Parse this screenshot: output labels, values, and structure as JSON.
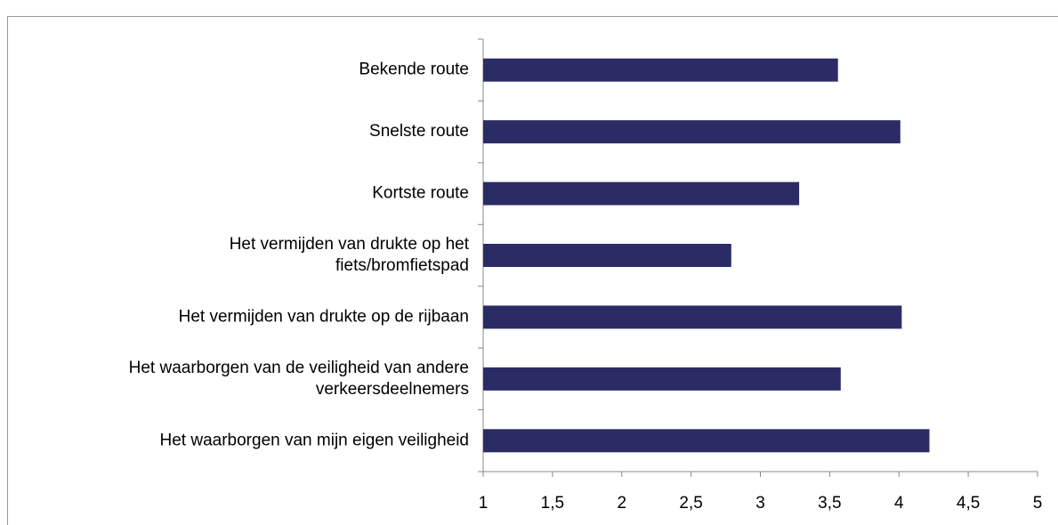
{
  "chart_data": {
    "type": "bar",
    "orientation": "horizontal",
    "categories": [
      "Bekende route",
      "Snelste route",
      "Kortste route",
      "Het vermijden van drukte op het\nfiets/bromfietspad",
      "Het vermijden van drukte op de rijbaan",
      "Het waarborgen van de veiligheid van andere\nverkeersdeelnemers",
      "Het waarborgen van mijn eigen veiligheid"
    ],
    "values": [
      3.56,
      4.01,
      3.28,
      2.79,
      4.02,
      3.58,
      4.22
    ],
    "color": "#2b2b66",
    "xlim": [
      1,
      5
    ],
    "xticks": [
      1,
      {
        "value": 1.5,
        "label": "1,5"
      },
      2,
      {
        "value": 2.5,
        "label": "2,5"
      },
      3,
      {
        "value": 3.5,
        "label": "3,5"
      },
      4,
      {
        "value": 4.5,
        "label": "4,5"
      },
      5
    ],
    "grid": false
  }
}
